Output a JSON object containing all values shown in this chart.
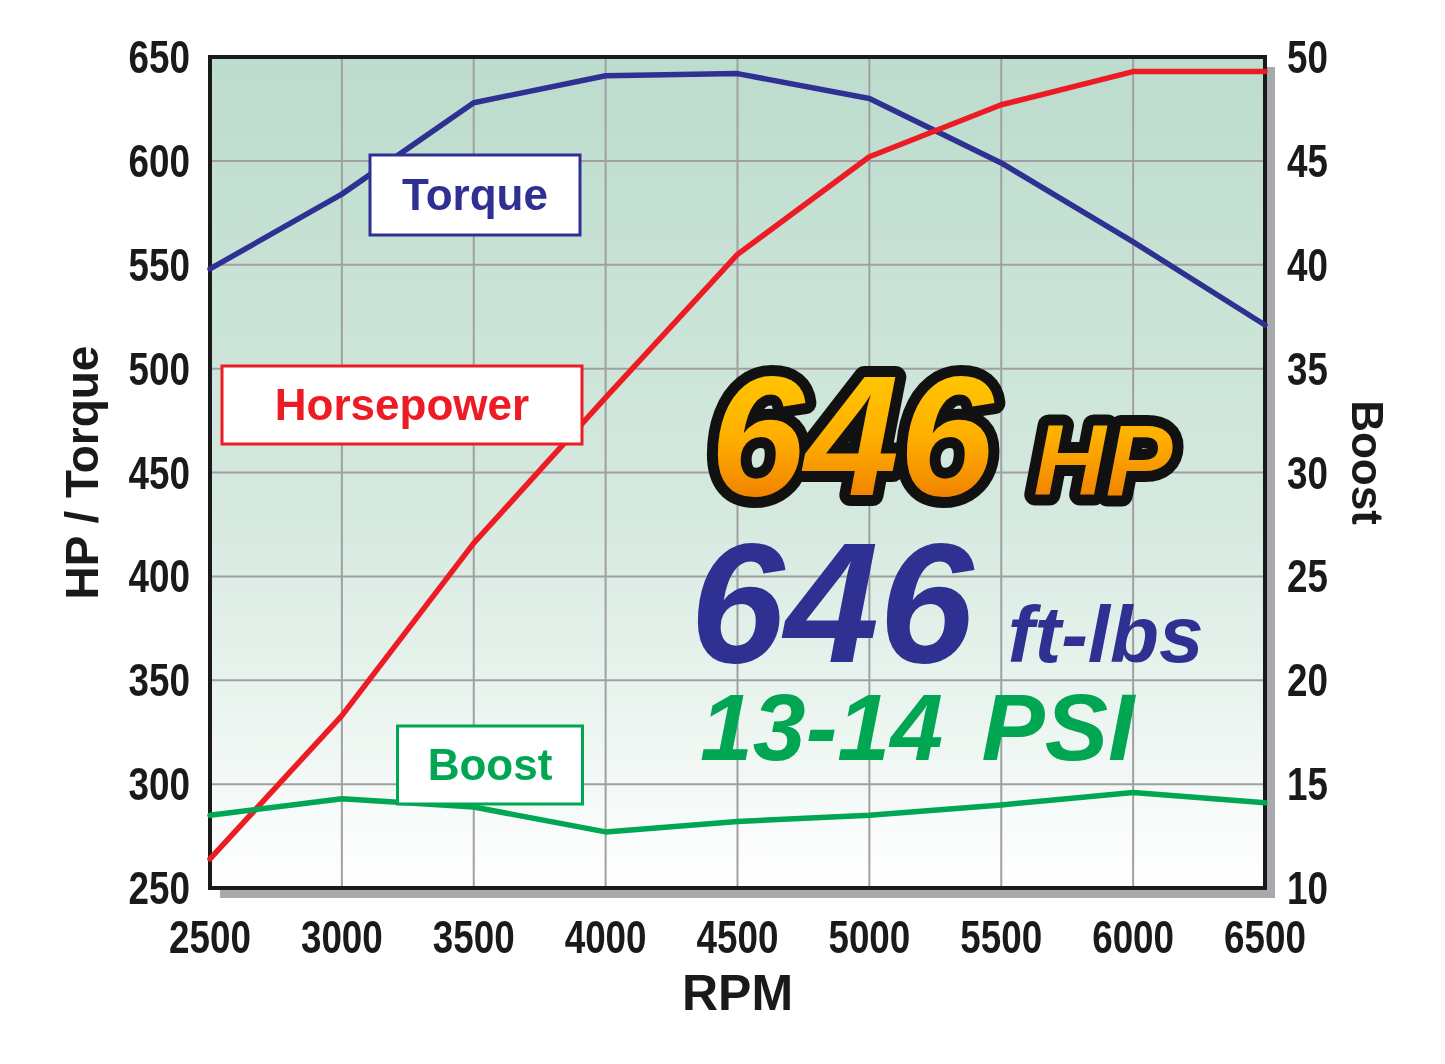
{
  "chart_data": {
    "type": "line",
    "xlabel": "RPM",
    "ylabel": "HP / Torque",
    "y2label": "Boost",
    "x": [
      2500,
      3000,
      3500,
      4000,
      4500,
      5000,
      5500,
      6000,
      6500
    ],
    "series": [
      {
        "name": "Torque",
        "color": "#2e3192",
        "values": [
          548,
          584,
          628,
          641,
          642,
          630,
          599,
          561,
          521
        ]
      },
      {
        "name": "Horsepower",
        "color": "#ed1c24",
        "values": [
          264,
          333,
          416,
          486,
          555,
          602,
          627,
          643,
          643
        ]
      },
      {
        "name": "Boost",
        "color": "#00a651",
        "axis": "y2",
        "values": [
          13.5,
          14.3,
          13.9,
          12.7,
          13.2,
          13.5,
          14.0,
          14.6,
          14.1
        ]
      }
    ],
    "xlim": [
      2500,
      6500
    ],
    "xticks": [
      2500,
      3000,
      3500,
      4000,
      4500,
      5000,
      5500,
      6000,
      6500
    ],
    "ylim": [
      250,
      650
    ],
    "yticks": [
      250,
      300,
      350,
      400,
      450,
      500,
      550,
      600,
      650
    ],
    "y2lim": [
      10,
      50
    ],
    "y2ticks": [
      10,
      15,
      20,
      25,
      30,
      35,
      40,
      45,
      50
    ],
    "annotations": [
      "646 HP",
      "646 ft-lbs",
      "13-14 PSI"
    ],
    "grid": true,
    "legend": false,
    "marker": "none",
    "line_style": "solid"
  }
}
